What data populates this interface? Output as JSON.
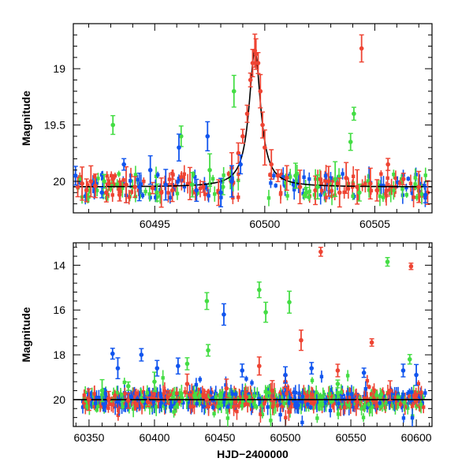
{
  "colors": {
    "red": "#ee4433",
    "green": "#44dd44",
    "blue": "#1155ee",
    "model": "#000000",
    "axis": "#000000"
  },
  "chart_data": [
    {
      "type": "scatter",
      "ylabel": "Magnitude",
      "xlabel": "",
      "xlim": [
        60491.3,
        60507.6
      ],
      "ylim": [
        20.28,
        18.6
      ],
      "y_inverted": true,
      "xticks": [
        60495,
        60500,
        60505
      ],
      "xtick_labels": [
        "60495",
        "60500",
        "60505"
      ],
      "yticks": [
        19,
        19.5,
        20
      ],
      "ytick_labels": [
        "19",
        "19.5",
        "20"
      ],
      "model_curve": {
        "type": "lorentzian_peak",
        "peak_x": 60499.55,
        "peak_mag": 18.84,
        "base_mag": 20.05,
        "width_days": 0.32
      },
      "series": [
        {
          "color": "red",
          "x": [
            60491.5,
            60491.7,
            60491.9,
            60492.1,
            60492.3,
            60492.8,
            60493.1,
            60493.4,
            60493.7,
            60494.1,
            60494.9,
            60495.3,
            60495.8,
            60496.6,
            60497.2,
            60497.9,
            60498.5,
            60498.8,
            60499.0,
            60499.2,
            60499.35,
            60499.45,
            60499.55,
            60499.6,
            60499.7,
            60499.8,
            60499.9,
            60500.0,
            60500.3,
            60500.6,
            60501.0,
            60501.6,
            60502.3,
            60502.9,
            60503.4,
            60503.7,
            60504.2,
            60504.4,
            60504.8,
            60505.1,
            60505.6,
            60506.3,
            60507.0,
            60507.4
          ],
          "y": [
            20.05,
            20.02,
            20.08,
            20.0,
            20.04,
            20.1,
            19.98,
            20.12,
            20.03,
            20.05,
            20.06,
            20.1,
            20.08,
            20.02,
            20.05,
            20.1,
            19.88,
            19.75,
            19.6,
            19.4,
            19.1,
            18.95,
            18.84,
            18.87,
            18.95,
            19.2,
            19.5,
            19.7,
            19.85,
            19.95,
            19.97,
            20.05,
            20.08,
            20.0,
            20.1,
            19.97,
            20.05,
            18.82,
            20.02,
            20.08,
            19.85,
            19.98,
            20.05,
            20.1
          ]
        },
        {
          "color": "green",
          "x": [
            60492.7,
            60493.1,
            60495.1,
            60496.2,
            60496.7,
            60497.5,
            60498.1,
            60498.6,
            60501.4,
            60501.9,
            60502.4,
            60503.2,
            60503.9,
            60504.05,
            60504.3
          ],
          "y": [
            20.0,
            19.5,
            20.1,
            19.6,
            20.03,
            19.9,
            20.05,
            19.2,
            19.95,
            20.1,
            20.05,
            19.98,
            19.65,
            19.4,
            20.1
          ]
        },
        {
          "color": "blue",
          "x": [
            60491.4,
            60492.6,
            60493.6,
            60494.3,
            60494.8,
            60495.5,
            60496.1,
            60496.9,
            60497.4,
            60498.0,
            60498.5,
            60498.9,
            60507.3
          ],
          "y": [
            19.95,
            20.1,
            19.85,
            20.05,
            19.9,
            20.03,
            19.7,
            20.08,
            19.6,
            20.1,
            20.0,
            19.85,
            20.12
          ]
        }
      ]
    },
    {
      "type": "scatter",
      "ylabel": "Magnitude",
      "xlabel": "HJD−2400000",
      "xlim": [
        60338,
        60612
      ],
      "ylim": [
        21.2,
        13.0
      ],
      "y_inverted": true,
      "xticks": [
        60350,
        60400,
        60450,
        60500,
        60550,
        60600
      ],
      "xtick_labels": [
        "60350",
        "60400",
        "60450",
        "60500",
        "60550",
        "60600"
      ],
      "yticks": [
        14,
        16,
        18,
        20
      ],
      "ytick_labels": [
        "14",
        "16",
        "18",
        "20"
      ],
      "model_line": {
        "mag": 20.0
      },
      "series": [
        {
          "color": "red",
          "x": [
            60350,
            60365,
            60380,
            60395,
            60410,
            60425,
            60440,
            60455,
            60470,
            60480,
            60490,
            60500,
            60512,
            60527,
            60540,
            60555,
            60566,
            60580,
            60596
          ],
          "y": [
            20.0,
            19.95,
            20.05,
            20.1,
            19.9,
            19.3,
            20.0,
            19.5,
            19.9,
            18.5,
            19.6,
            19.2,
            17.35,
            13.4,
            18.7,
            20.1,
            17.45,
            19.6,
            14.05
          ]
        },
        {
          "color": "green",
          "x": [
            60360,
            60380,
            60400,
            60425,
            60440,
            60441,
            60480,
            60485,
            60503,
            60540,
            60578,
            60595
          ],
          "y": [
            19.6,
            19.4,
            19.2,
            18.4,
            15.6,
            17.8,
            15.1,
            16.1,
            15.65,
            19.3,
            13.85,
            18.2
          ]
        },
        {
          "color": "blue",
          "x": [
            60368,
            60372,
            60390,
            60402,
            60418,
            60453,
            60467,
            60500,
            60520,
            60560,
            60590,
            60600
          ],
          "y": [
            17.95,
            18.6,
            18.0,
            18.6,
            18.5,
            16.2,
            18.7,
            18.9,
            18.6,
            18.8,
            18.7,
            18.9
          ]
        }
      ]
    }
  ]
}
